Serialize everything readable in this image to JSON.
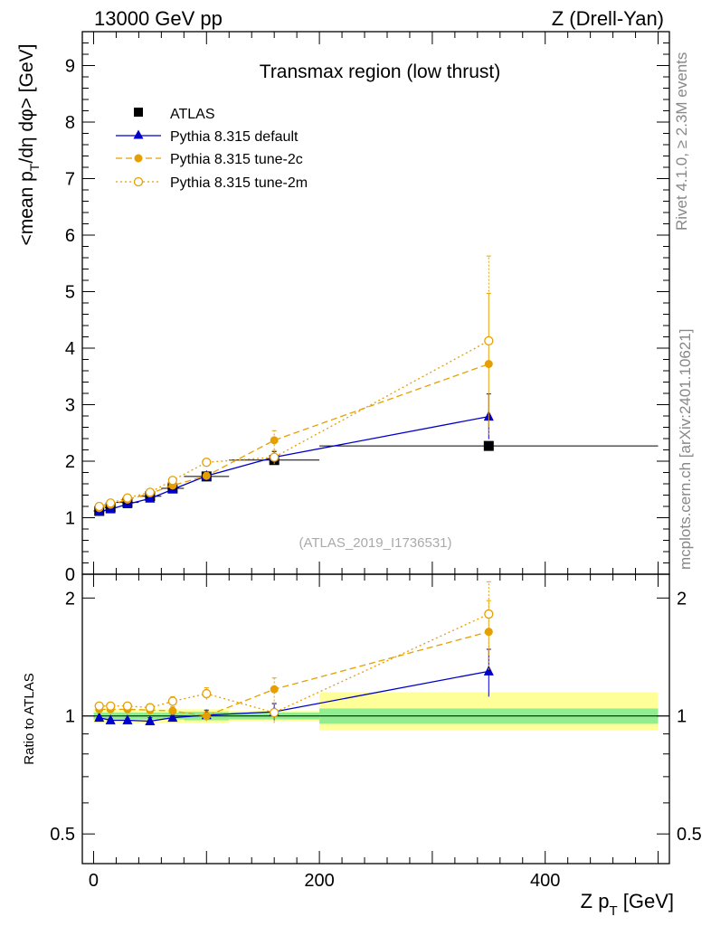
{
  "header": {
    "left": "13000 GeV pp",
    "right": "Z (Drell-Yan)",
    "side_top": "Rivet 4.1.0, ≥ 2.3M events",
    "side_bottom": "mcplots.cern.ch [arXiv:2401.10621]"
  },
  "chart_data": {
    "type": "line",
    "title": "Transmax region (low thrust)",
    "watermark": "(ATLAS_2019_I1736531)",
    "xlabel": "Z p_T [GeV]",
    "xlim": [
      -10,
      510
    ],
    "xticks": [
      0,
      200,
      400
    ],
    "main": {
      "ylabel": "<mean p_T/dη dφ> [GeV]",
      "ylim": [
        0,
        9.6
      ],
      "yticks": [
        0,
        1,
        2,
        3,
        4,
        5,
        6,
        7,
        8,
        9
      ]
    },
    "ratio": {
      "ylabel": "Ratio to ATLAS",
      "ylim": [
        0.42,
        2.3
      ],
      "yticks": [
        0.5,
        1,
        2
      ],
      "bands": [
        {
          "x": [
            0,
            10
          ],
          "inner": [
            0.98,
            1.02
          ],
          "outer": [
            0.96,
            1.04
          ]
        },
        {
          "x": [
            10,
            20
          ],
          "inner": [
            0.98,
            1.02
          ],
          "outer": [
            0.96,
            1.04
          ]
        },
        {
          "x": [
            20,
            40
          ],
          "inner": [
            0.98,
            1.02
          ],
          "outer": [
            0.96,
            1.04
          ]
        },
        {
          "x": [
            40,
            60
          ],
          "inner": [
            0.98,
            1.02
          ],
          "outer": [
            0.96,
            1.04
          ]
        },
        {
          "x": [
            60,
            80
          ],
          "inner": [
            0.98,
            1.02
          ],
          "outer": [
            0.96,
            1.04
          ]
        },
        {
          "x": [
            80,
            120
          ],
          "inner": [
            0.975,
            1.025
          ],
          "outer": [
            0.96,
            1.04
          ]
        },
        {
          "x": [
            120,
            200
          ],
          "inner": [
            0.98,
            1.02
          ],
          "outer": [
            0.97,
            1.03
          ]
        },
        {
          "x": [
            200,
            500
          ],
          "inner": [
            0.955,
            1.045
          ],
          "outer": [
            0.92,
            1.15
          ]
        }
      ]
    },
    "series": [
      {
        "name": "ATLAS",
        "kind": "data",
        "color": "#000000",
        "marker": "square",
        "x": [
          5,
          15,
          30,
          50,
          70,
          100,
          160,
          350
        ],
        "y": [
          1.12,
          1.18,
          1.27,
          1.38,
          1.52,
          1.73,
          2.02,
          2.27
        ],
        "xerr": [
          5,
          5,
          10,
          10,
          10,
          20,
          40,
          150
        ]
      },
      {
        "name": "Pythia 8.315 default",
        "kind": "mc",
        "color": "#0000cc",
        "marker": "triangle",
        "dash": "",
        "x": [
          5,
          15,
          30,
          50,
          70,
          100,
          160,
          350
        ],
        "y": [
          1.11,
          1.15,
          1.24,
          1.34,
          1.5,
          1.74,
          2.07,
          2.79
        ],
        "err": [
          0.02,
          0.02,
          0.02,
          0.03,
          0.04,
          0.05,
          0.1,
          0.4
        ],
        "ratio": [
          0.99,
          0.975,
          0.975,
          0.97,
          0.99,
          1.005,
          1.025,
          1.3
        ],
        "ratio_err": [
          0.01,
          0.01,
          0.01,
          0.02,
          0.02,
          0.03,
          0.05,
          0.18
        ]
      },
      {
        "name": "Pythia 8.315 tune-2c",
        "kind": "mc",
        "color": "#e69f00",
        "marker": "circle",
        "dash": "7,4",
        "x": [
          5,
          15,
          30,
          50,
          70,
          100,
          160,
          350
        ],
        "y": [
          1.17,
          1.23,
          1.32,
          1.43,
          1.57,
          1.74,
          2.37,
          3.72
        ],
        "err": [
          0.02,
          0.02,
          0.03,
          0.04,
          0.05,
          0.06,
          0.17,
          1.25
        ],
        "ratio": [
          1.04,
          1.04,
          1.04,
          1.035,
          1.03,
          1.0,
          1.17,
          1.64
        ],
        "ratio_err": [
          0.01,
          0.01,
          0.015,
          0.02,
          0.025,
          0.03,
          0.08,
          0.33
        ]
      },
      {
        "name": "Pythia 8.315 tune-2m",
        "kind": "mc",
        "color": "#e69f00",
        "marker": "circle-open",
        "dash": "2,3",
        "x": [
          5,
          15,
          30,
          50,
          70,
          100,
          160,
          350
        ],
        "y": [
          1.2,
          1.26,
          1.35,
          1.45,
          1.66,
          1.98,
          2.07,
          4.13
        ],
        "err": [
          0.02,
          0.02,
          0.03,
          0.04,
          0.05,
          0.07,
          0.12,
          1.5
        ],
        "ratio": [
          1.06,
          1.06,
          1.06,
          1.05,
          1.09,
          1.14,
          1.02,
          1.82
        ],
        "ratio_err": [
          0.01,
          0.01,
          0.015,
          0.02,
          0.03,
          0.04,
          0.06,
          0.38
        ]
      }
    ]
  }
}
